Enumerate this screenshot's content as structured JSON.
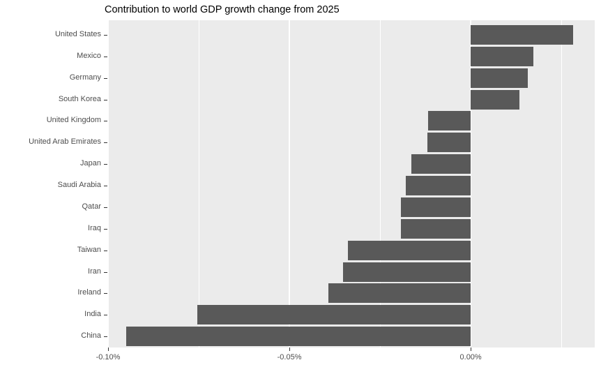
{
  "chart_data": {
    "type": "bar",
    "orientation": "horizontal",
    "title": "Contribution to world GDP growth change from 2025",
    "categories": [
      "United States",
      "Mexico",
      "Germany",
      "South Korea",
      "United Kingdom",
      "United Arab Emirates",
      "Japan",
      "Saudi Arabia",
      "Qatar",
      "Iraq",
      "Taiwan",
      "Iran",
      "Ireland",
      "India",
      "China"
    ],
    "values": [
      0.0283,
      0.0173,
      0.0158,
      0.0135,
      -0.0117,
      -0.012,
      -0.0163,
      -0.0179,
      -0.0192,
      -0.0192,
      -0.0338,
      -0.0352,
      -0.0392,
      -0.0754,
      -0.095
    ],
    "value_unit": "percentage points",
    "xlabel": "",
    "ylabel": "",
    "xlim": [
      -0.1002,
      0.0342
    ],
    "x_major_ticks": [
      -0.1,
      -0.05,
      0.0
    ],
    "x_tick_labels": [
      "-0.10%",
      "-0.05%",
      "0.00%"
    ],
    "x_minor_gridlines": [
      -0.075,
      -0.025,
      0.025
    ],
    "grid": true,
    "legend": "none",
    "colors": {
      "bar_fill": "#595959",
      "panel_background": "#EBEBEB",
      "gridline": "#FFFFFF",
      "axis_text": "#4D4D4D",
      "tick_mark": "#333333",
      "title_text": "#000000",
      "page_background": "#FFFFFF"
    }
  }
}
